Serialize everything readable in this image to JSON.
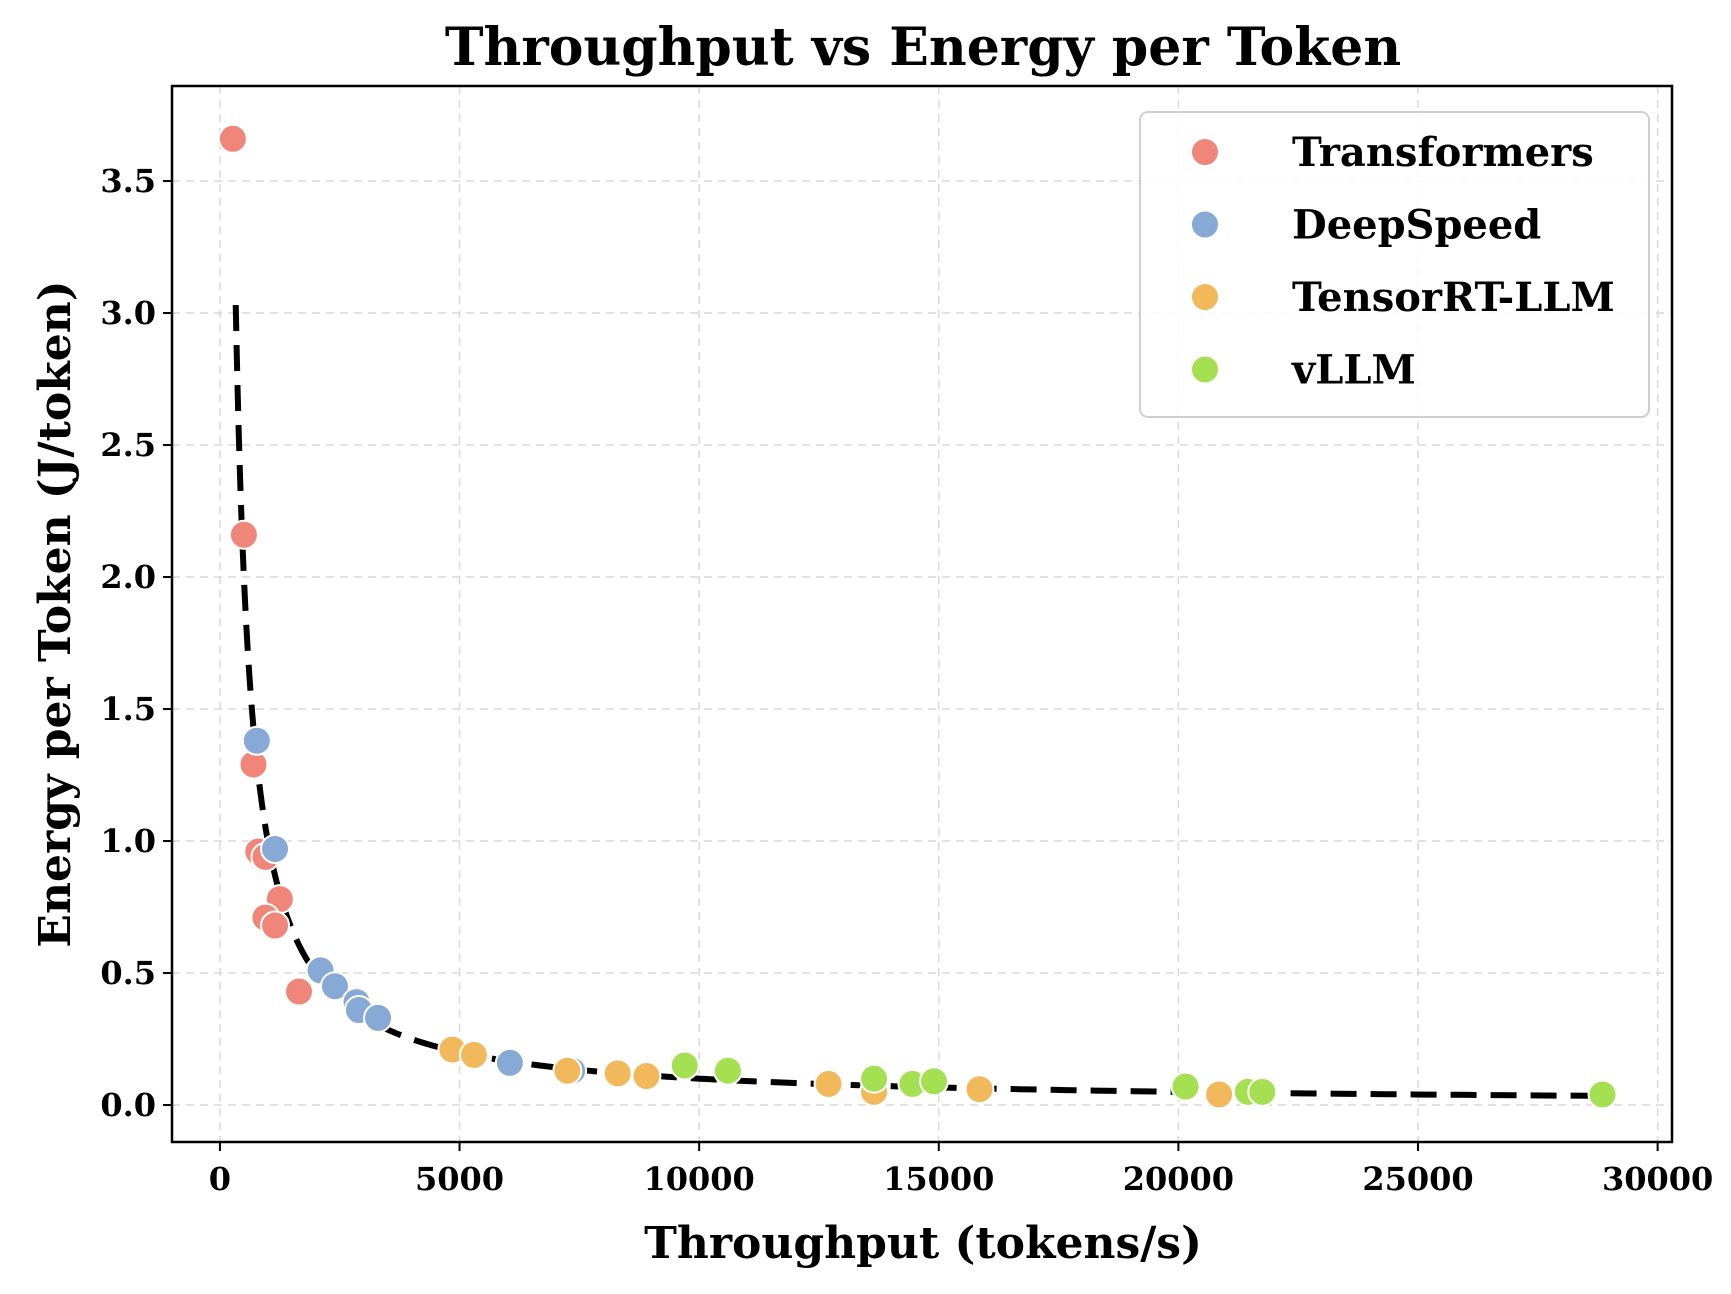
{
  "chart_data": {
    "type": "scatter",
    "title": "Throughput vs Energy per Token",
    "xlabel": "Throughput (tokens/s)",
    "ylabel": "Energy per Token (J/token)",
    "xlim": [
      -1000,
      30300
    ],
    "ylim": [
      -0.14,
      3.86
    ],
    "xticks": [
      0,
      5000,
      10000,
      15000,
      20000,
      25000,
      30000
    ],
    "xtick_labels": [
      "0",
      "5000",
      "10000",
      "15000",
      "20000",
      "25000",
      "30000"
    ],
    "yticks": [
      0.0,
      0.5,
      1.0,
      1.5,
      2.0,
      2.5,
      3.0,
      3.5
    ],
    "ytick_labels": [
      "0.0",
      "0.5",
      "1.0",
      "1.5",
      "2.0",
      "2.5",
      "3.0",
      "3.5"
    ],
    "grid": true,
    "legend_position": "top-right",
    "series": [
      {
        "name": "Transformers",
        "color": "#f0867a",
        "points": [
          [
            270,
            3.66
          ],
          [
            500,
            2.16
          ],
          [
            700,
            1.29
          ],
          [
            800,
            0.96
          ],
          [
            950,
            0.94
          ],
          [
            1250,
            0.78
          ],
          [
            950,
            0.71
          ],
          [
            1150,
            0.68
          ],
          [
            1650,
            0.43
          ]
        ]
      },
      {
        "name": "DeepSpeed",
        "color": "#86a9d6",
        "points": [
          [
            770,
            1.38
          ],
          [
            1150,
            0.97
          ],
          [
            2100,
            0.51
          ],
          [
            2400,
            0.45
          ],
          [
            2850,
            0.39
          ],
          [
            2900,
            0.36
          ],
          [
            3300,
            0.33
          ],
          [
            6050,
            0.16
          ],
          [
            7350,
            0.13
          ]
        ]
      },
      {
        "name": "TensorRT-LLM",
        "color": "#f2b95c",
        "points": [
          [
            4850,
            0.21
          ],
          [
            5300,
            0.19
          ],
          [
            7250,
            0.13
          ],
          [
            8300,
            0.12
          ],
          [
            8900,
            0.11
          ],
          [
            12700,
            0.08
          ],
          [
            13650,
            0.05
          ],
          [
            15850,
            0.06
          ],
          [
            20850,
            0.04
          ]
        ]
      },
      {
        "name": "vLLM",
        "color": "#a4e052",
        "points": [
          [
            9700,
            0.15
          ],
          [
            10600,
            0.13
          ],
          [
            13650,
            0.1
          ],
          [
            14450,
            0.08
          ],
          [
            14900,
            0.09
          ],
          [
            20150,
            0.07
          ],
          [
            21450,
            0.05
          ],
          [
            21750,
            0.05
          ],
          [
            28850,
            0.04
          ]
        ]
      }
    ],
    "fit_curve": {
      "style": "dashed",
      "color": "#000000",
      "model": "y = 1000 / x",
      "x_range": [
        330,
        28850
      ]
    }
  }
}
